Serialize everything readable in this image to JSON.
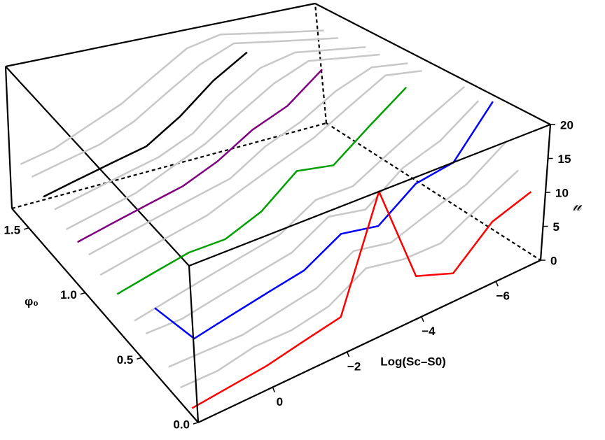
{
  "chart_data": {
    "type": "surface3d",
    "x_label": "Log(Sc–S0)",
    "phi_label": "φ₀",
    "u_label": "𝓊",
    "xlim": [
      2,
      -7.2
    ],
    "xticks": [
      0,
      {
        "value": -2,
        "label": "−2"
      },
      {
        "value": -4,
        "label": "−4"
      },
      {
        "value": -6,
        "label": "−6"
      }
    ],
    "phi_lim": [
      0,
      1.65
    ],
    "phi_ticks": [
      {
        "value": 0,
        "label": "0.0"
      },
      0.5,
      {
        "value": 1,
        "label": "1.0"
      },
      1.5
    ],
    "ylim": [
      0,
      20
    ],
    "yticks": [
      0,
      5,
      10,
      15,
      20
    ],
    "x": [
      2,
      1,
      0,
      -1,
      -2,
      -3,
      -4,
      -5,
      -6,
      -7
    ],
    "series": [
      {
        "phi0": 1.55,
        "color": "#c8c8c8",
        "values": [
          8,
          9,
          11,
          13,
          16,
          19,
          20,
          19,
          18,
          17
        ]
      },
      {
        "phi0": 1.45,
        "color": "#c8c8c8",
        "values": [
          8,
          9,
          10,
          12,
          15,
          18,
          20,
          19,
          18,
          17
        ]
      },
      {
        "phi0": 1.35,
        "color": "#000000",
        "values": [
          7,
          8,
          9,
          10,
          13,
          17,
          20,
          null,
          null,
          null
        ]
      },
      {
        "phi0": 1.25,
        "color": "#c8c8c8",
        "values": [
          7,
          8,
          9,
          10,
          12,
          16,
          19,
          20,
          19,
          18
        ]
      },
      {
        "phi0": 1.15,
        "color": "#c8c8c8",
        "values": [
          6,
          7,
          8,
          10,
          12,
          15,
          18,
          20,
          19,
          18
        ]
      },
      {
        "phi0": 1.05,
        "color": "#800080",
        "values": [
          6,
          7,
          8,
          9,
          11,
          14,
          16,
          20,
          null,
          null
        ]
      },
      {
        "phi0": 0.95,
        "color": "#c8c8c8",
        "values": [
          6,
          7,
          8,
          9,
          10,
          13,
          15,
          18,
          20,
          19
        ]
      },
      {
        "phi0": 0.85,
        "color": "#c8c8c8",
        "values": [
          5,
          6,
          7,
          8,
          10,
          12,
          14,
          17,
          20,
          19
        ]
      },
      {
        "phi0": 0.7,
        "color": "#00a000",
        "values": [
          5,
          6,
          7,
          7,
          9,
          13,
          12,
          16,
          20,
          null
        ]
      },
      {
        "phi0": 0.55,
        "color": "#c8c8c8",
        "values": [
          4,
          5,
          6,
          7,
          8,
          11,
          11,
          14,
          17,
          20
        ]
      },
      {
        "phi0": 0.45,
        "color": "#c8c8c8",
        "values": [
          4,
          4,
          5,
          6,
          7,
          10,
          9,
          13,
          15,
          19
        ]
      },
      {
        "phi0": 0.35,
        "color": "#0000ff",
        "values": [
          9,
          3,
          4,
          5,
          6,
          9,
          8,
          12,
          13,
          20
        ]
      },
      {
        "phi0": 0.25,
        "color": "#c8c8c8",
        "values": [
          3,
          3,
          3,
          4,
          5,
          8,
          7,
          9,
          11,
          15
        ]
      },
      {
        "phi0": 0.15,
        "color": "#c8c8c8",
        "values": [
          2,
          2,
          3,
          3,
          4,
          7,
          6,
          6,
          9,
          12
        ]
      },
      {
        "phi0": 0.05,
        "color": "#ff0000",
        "values": [
          1,
          1.5,
          2,
          3,
          4,
          19,
          5,
          3,
          8,
          10
        ]
      }
    ]
  }
}
